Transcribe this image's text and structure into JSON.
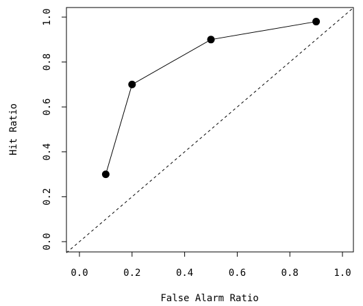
{
  "chart_data": {
    "type": "line",
    "title": "",
    "xlabel": "False Alarm Ratio",
    "ylabel": "Hit Ratio",
    "xlim": [
      0.0,
      1.0
    ],
    "ylim": [
      0.0,
      1.0
    ],
    "x_ticks": [
      0.0,
      0.2,
      0.4,
      0.6,
      0.8,
      1.0
    ],
    "y_ticks": [
      0.0,
      0.2,
      0.4,
      0.6,
      0.8,
      1.0
    ],
    "x_tick_labels": [
      "0.0",
      "0.2",
      "0.4",
      "0.6",
      "0.8",
      "1.0"
    ],
    "y_tick_labels": [
      "0.0",
      "0.2",
      "0.4",
      "0.6",
      "0.8",
      "1.0"
    ],
    "grid": false,
    "series": [
      {
        "x": [
          0.1,
          0.2,
          0.5,
          0.9
        ],
        "y": [
          0.3,
          0.7,
          0.9,
          0.98
        ],
        "marker": "filled-circle",
        "line_style": "solid",
        "color": "#000000"
      }
    ],
    "reference_line": {
      "x": [
        0.0,
        1.0
      ],
      "y": [
        0.0,
        1.0
      ],
      "line_style": "dashed",
      "color": "#000000"
    }
  }
}
